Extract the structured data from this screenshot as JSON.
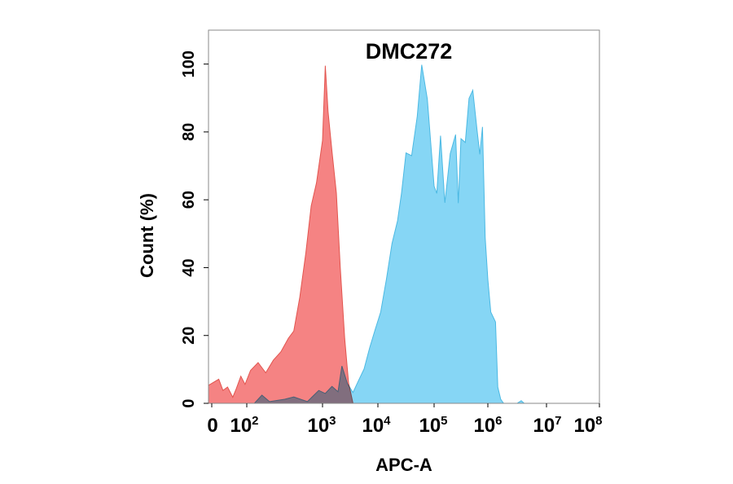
{
  "chart_data": {
    "type": "area",
    "title": "DMC272",
    "xlabel": "APC-A",
    "ylabel": "Count  (%)",
    "x_scale": "biexponential",
    "xlim": [
      -100,
      100000000
    ],
    "ylim": [
      0,
      110
    ],
    "grid": false,
    "x_ticks": [
      {
        "base": "0",
        "exp": ""
      },
      {
        "base": "10",
        "exp": "2"
      },
      {
        "base": "10",
        "exp": "3"
      },
      {
        "base": "10",
        "exp": "4"
      },
      {
        "base": "10",
        "exp": "5"
      },
      {
        "base": "10",
        "exp": "6"
      },
      {
        "base": "10",
        "exp": "7"
      },
      {
        "base": "10",
        "exp": "8"
      }
    ],
    "y_ticks": [
      "0",
      "20",
      "40",
      "60",
      "80",
      "100"
    ],
    "series": [
      {
        "color": "#f47c7c",
        "stroke": "#e2554f",
        "points": [
          [
            0.0,
            5.3
          ],
          [
            0.2,
            7.1
          ],
          [
            0.32,
            3.8
          ],
          [
            0.45,
            4.8
          ],
          [
            0.6,
            1.8
          ],
          [
            0.7,
            4.3
          ],
          [
            0.83,
            8.0
          ],
          [
            0.95,
            5.6
          ],
          [
            1.05,
            9.7
          ],
          [
            1.15,
            12.0
          ],
          [
            1.25,
            9.0
          ],
          [
            1.35,
            12.7
          ],
          [
            1.45,
            15.2
          ],
          [
            1.55,
            19.2
          ],
          [
            1.62,
            21.3
          ],
          [
            1.7,
            31.3
          ],
          [
            1.78,
            44.3
          ],
          [
            1.85,
            58.2
          ],
          [
            1.92,
            65.0
          ],
          [
            2.0,
            77.5
          ],
          [
            2.05,
            99.5
          ],
          [
            2.1,
            86.0
          ],
          [
            2.17,
            74.3
          ],
          [
            2.25,
            62.0
          ],
          [
            2.32,
            40.0
          ],
          [
            2.4,
            19.2
          ],
          [
            2.47,
            6.0
          ],
          [
            2.55,
            0.0
          ]
        ]
      },
      {
        "color": "#7fd4f4",
        "stroke": "#4cb9e3",
        "points": [
          [
            0.0,
            0.0
          ],
          [
            1.1,
            0.0
          ],
          [
            1.2,
            2.4
          ],
          [
            1.3,
            0.5
          ],
          [
            1.5,
            1.2
          ],
          [
            1.62,
            1.9
          ],
          [
            1.8,
            0.5
          ],
          [
            1.95,
            3.8
          ],
          [
            2.05,
            2.9
          ],
          [
            2.17,
            5.0
          ],
          [
            2.28,
            3.4
          ],
          [
            2.35,
            11.0
          ],
          [
            2.45,
            5.8
          ],
          [
            2.55,
            3.2
          ],
          [
            2.65,
            6.7
          ],
          [
            2.75,
            10.1
          ],
          [
            2.85,
            16.3
          ],
          [
            2.95,
            21.7
          ],
          [
            3.05,
            26.9
          ],
          [
            3.15,
            36.5
          ],
          [
            3.25,
            47.1
          ],
          [
            3.35,
            53.8
          ],
          [
            3.42,
            62.0
          ],
          [
            3.5,
            73.8
          ],
          [
            3.6,
            73.0
          ],
          [
            3.7,
            84.6
          ],
          [
            3.78,
            99.8
          ],
          [
            3.88,
            89.7
          ],
          [
            4.0,
            64.0
          ],
          [
            4.05,
            61.9
          ],
          [
            4.12,
            78.9
          ],
          [
            4.2,
            59.1
          ],
          [
            4.3,
            73.6
          ],
          [
            4.4,
            79.2
          ],
          [
            4.45,
            59.0
          ],
          [
            4.5,
            78.0
          ],
          [
            4.58,
            76.9
          ],
          [
            4.65,
            89.9
          ],
          [
            4.72,
            92.3
          ],
          [
            4.8,
            80.4
          ],
          [
            4.85,
            73.4
          ],
          [
            4.9,
            81.5
          ],
          [
            4.95,
            49.0
          ],
          [
            5.0,
            36.5
          ],
          [
            5.05,
            26.9
          ],
          [
            5.13,
            24.0
          ],
          [
            5.17,
            4.8
          ],
          [
            5.22,
            1.2
          ],
          [
            5.27,
            0.0
          ],
          [
            5.5,
            0.0
          ],
          [
            5.57,
            0.8
          ],
          [
            5.62,
            0.0
          ],
          [
            6.0,
            0.0
          ]
        ]
      }
    ]
  }
}
